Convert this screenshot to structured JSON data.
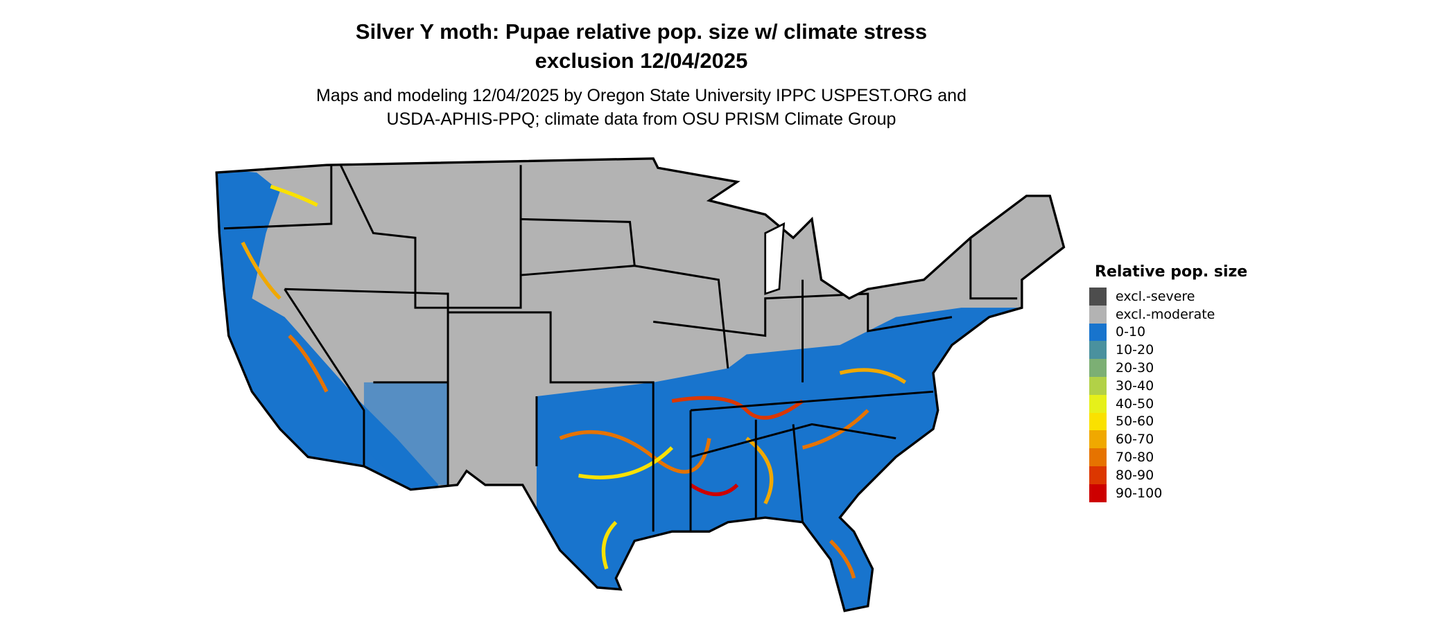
{
  "title": {
    "line1": "Silver Y moth: Pupae relative pop. size w/ climate stress",
    "line2": "exclusion 12/04/2025"
  },
  "subtitle": {
    "line1": "Maps and modeling 12/04/2025 by Oregon State University IPPC USPEST.ORG and",
    "line2": "USDA-APHIS-PPQ; climate data from OSU PRISM Climate Group"
  },
  "legend": {
    "title": "Relative pop. size",
    "items": [
      {
        "label": "excl.-severe",
        "color": "#4d4d4d"
      },
      {
        "label": "excl.-moderate",
        "color": "#b3b3b3"
      },
      {
        "label": "0-10",
        "color": "#1874cd"
      },
      {
        "label": "10-20",
        "color": "#4a919e"
      },
      {
        "label": "20-30",
        "color": "#7caf74"
      },
      {
        "label": "30-40",
        "color": "#b2d147"
      },
      {
        "label": "40-50",
        "color": "#e6f01a"
      },
      {
        "label": "50-60",
        "color": "#fae100"
      },
      {
        "label": "60-70",
        "color": "#f0a800"
      },
      {
        "label": "70-80",
        "color": "#e67300"
      },
      {
        "label": "80-90",
        "color": "#dc3700"
      },
      {
        "label": "90-100",
        "color": "#cd0000"
      }
    ]
  }
}
